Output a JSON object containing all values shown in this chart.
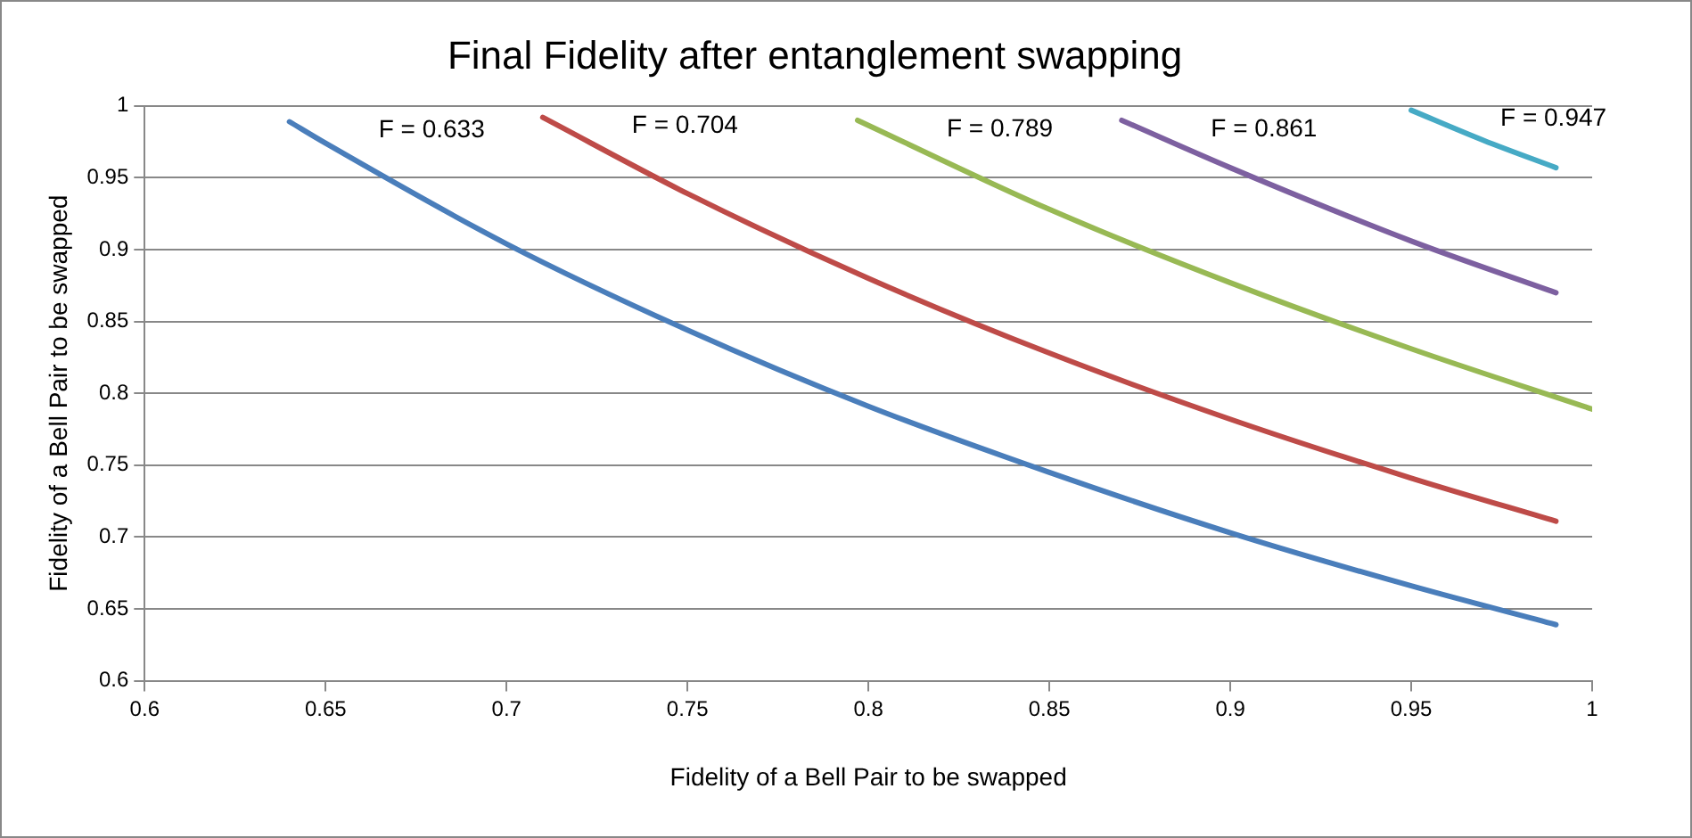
{
  "chart_data": {
    "type": "line",
    "title": "Final Fidelity after entanglement swapping",
    "xlabel": "Fidelity of a Bell Pair to be swapped",
    "ylabel": "Fidelity of a Bell Pair to be swapped",
    "xlim": [
      0.6,
      1
    ],
    "xticks": [
      0.6,
      0.65,
      0.7,
      0.75,
      0.8,
      0.85,
      0.9,
      0.95,
      1
    ],
    "ylim": [
      0.6,
      1
    ],
    "yticks": [
      0.6,
      0.65,
      0.7,
      0.75,
      0.8,
      0.85,
      0.9,
      0.95,
      1
    ],
    "grid": "y",
    "legend": false,
    "marker": "none",
    "line_style": "solid",
    "series": [
      {
        "name": "F = 0.633",
        "color": "#4a7ebb",
        "x": [
          0.64,
          0.65,
          0.7,
          0.75,
          0.8,
          0.85,
          0.9,
          0.95,
          0.99
        ],
        "values": [
          0.989,
          0.974,
          0.904,
          0.844,
          0.791,
          0.745,
          0.703,
          0.666,
          0.639
        ]
      },
      {
        "name": "F = 0.704",
        "color": "#be4b48",
        "x": [
          0.71,
          0.75,
          0.8,
          0.85,
          0.9,
          0.95,
          0.99
        ],
        "values": [
          0.992,
          0.939,
          0.88,
          0.828,
          0.782,
          0.741,
          0.711
        ]
      },
      {
        "name": "F = 0.789",
        "color": "#98b954",
        "x": [
          0.797,
          0.85,
          0.9,
          0.95,
          1
        ],
        "values": [
          0.99,
          0.928,
          0.877,
          0.831,
          0.789
        ]
      },
      {
        "name": "F = 0.861",
        "color": "#7d60a0",
        "x": [
          0.87,
          0.9,
          0.95,
          0.99
        ],
        "values": [
          0.99,
          0.957,
          0.906,
          0.87
        ]
      },
      {
        "name": "F = 0.947",
        "color": "#46aac5",
        "x": [
          0.95,
          0.97,
          0.99
        ],
        "values": [
          0.997,
          0.976,
          0.957
        ]
      }
    ]
  }
}
